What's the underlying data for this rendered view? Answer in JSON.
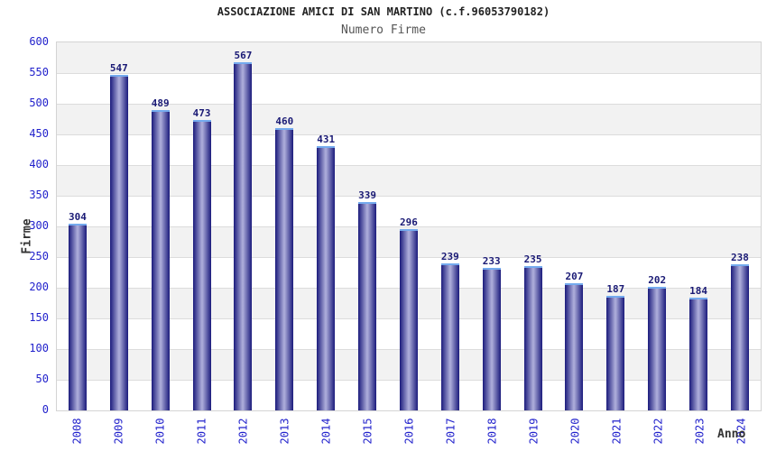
{
  "chart": {
    "title": "ASSOCIAZIONE AMICI DI SAN MARTINO (c.f.96053790182)",
    "subtitle": "Numero Firme",
    "ylabel": "Firme",
    "xlabel": "Anno"
  },
  "chart_data": {
    "type": "bar",
    "title": "ASSOCIAZIONE AMICI DI SAN MARTINO (c.f.96053790182)",
    "subtitle": "Numero Firme",
    "xlabel": "Anno",
    "ylabel": "Firme",
    "categories": [
      "2008",
      "2009",
      "2010",
      "2011",
      "2012",
      "2013",
      "2014",
      "2015",
      "2016",
      "2017",
      "2018",
      "2019",
      "2020",
      "2021",
      "2022",
      "2023",
      "2024"
    ],
    "values": [
      304,
      547,
      489,
      473,
      567,
      460,
      431,
      339,
      296,
      239,
      233,
      235,
      207,
      187,
      202,
      184,
      238
    ],
    "ylim": [
      0,
      600
    ],
    "ytick_step": 50,
    "grid": true,
    "band_step": 50,
    "legend": "none",
    "colors": {
      "tick_label": "#2222cc",
      "value_label": "#1a1a75",
      "bar_edge": "#1b1b7c",
      "bar_center": "#b0b0dc",
      "bar_cap": "#74aaee",
      "band_gray": "#f2f2f2",
      "band_white": "#ffffff",
      "gridline": "#dcdcdc",
      "title": "#222222",
      "subtitle": "#555555",
      "axis_title": "#333333"
    }
  }
}
